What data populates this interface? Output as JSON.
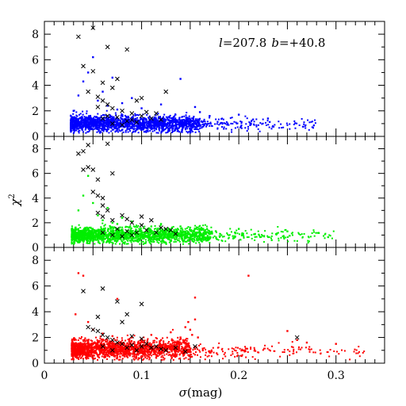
{
  "chart_data": {
    "type": "scatter",
    "annotation": {
      "l_sym": "l",
      "l_val": "=207.8",
      "b_sym": "b",
      "b_val": "=+40.8"
    },
    "xlabel": {
      "sym": "σ",
      "rest": "(mag)"
    },
    "ylabel": {
      "sym": "χ",
      "sup": "2"
    },
    "xlim": [
      0,
      0.35
    ],
    "ylim": [
      0,
      9
    ],
    "x_ticks": [
      0,
      0.1,
      0.2,
      0.3
    ],
    "x_tick_labels": [
      "0",
      "0.1",
      "0.2",
      "0.3"
    ],
    "y_ticks": [
      0,
      2,
      4,
      6,
      8
    ],
    "y_tick_labels": [
      "0",
      "2",
      "4",
      "6",
      "8"
    ],
    "grid": false,
    "panels": [
      {
        "name": "blue",
        "color": "#0000ff",
        "dots_core": {
          "x_range": [
            0.027,
            0.16
          ],
          "y_center": 1.0,
          "y_spread": 0.3
        },
        "dots_tail": {
          "x_range": [
            0.16,
            0.28
          ],
          "y_center": 0.95,
          "y_spread": 0.25
        },
        "dots_outliers": [
          [
            0.03,
            2.0
          ],
          [
            0.035,
            3.2
          ],
          [
            0.04,
            4.3
          ],
          [
            0.045,
            5.0
          ],
          [
            0.05,
            6.2
          ],
          [
            0.055,
            2.8
          ],
          [
            0.06,
            3.5
          ],
          [
            0.065,
            2.4
          ],
          [
            0.07,
            4.6
          ],
          [
            0.075,
            2.1
          ],
          [
            0.08,
            2.6
          ],
          [
            0.09,
            3.0
          ],
          [
            0.1,
            2.2
          ],
          [
            0.12,
            2.5
          ],
          [
            0.14,
            4.5
          ],
          [
            0.155,
            2.3
          ],
          [
            0.16,
            1.9
          ],
          [
            0.17,
            1.6
          ],
          [
            0.2,
            1.7
          ],
          [
            0.23,
            1.4
          ]
        ],
        "crosses": [
          [
            0.035,
            7.8
          ],
          [
            0.05,
            8.5
          ],
          [
            0.065,
            7.0
          ],
          [
            0.085,
            6.8
          ],
          [
            0.04,
            5.5
          ],
          [
            0.05,
            5.1
          ],
          [
            0.06,
            4.2
          ],
          [
            0.07,
            3.8
          ],
          [
            0.075,
            4.5
          ],
          [
            0.045,
            3.5
          ],
          [
            0.055,
            3.1
          ],
          [
            0.06,
            2.8
          ],
          [
            0.065,
            2.5
          ],
          [
            0.07,
            2.2
          ],
          [
            0.08,
            2.0
          ],
          [
            0.09,
            1.8
          ],
          [
            0.1,
            1.6
          ],
          [
            0.11,
            1.4
          ],
          [
            0.12,
            1.3
          ],
          [
            0.075,
            1.5
          ],
          [
            0.085,
            1.2
          ],
          [
            0.095,
            1.1
          ],
          [
            0.065,
            1.6
          ],
          [
            0.055,
            2.3
          ],
          [
            0.105,
            1.9
          ],
          [
            0.115,
            1.8
          ],
          [
            0.125,
            3.5
          ],
          [
            0.095,
            2.8
          ],
          [
            0.1,
            3.0
          ],
          [
            0.07,
            1.0
          ],
          [
            0.08,
            0.9
          ],
          [
            0.06,
            1.4
          ],
          [
            0.09,
            1.3
          ]
        ]
      },
      {
        "name": "green",
        "color": "#00ee00",
        "dots_core": {
          "x_range": [
            0.028,
            0.17
          ],
          "y_center": 1.0,
          "y_spread": 0.3
        },
        "dots_tail": {
          "x_range": [
            0.17,
            0.3
          ],
          "y_center": 0.95,
          "y_spread": 0.25
        },
        "dots_outliers": [
          [
            0.035,
            3.0
          ],
          [
            0.04,
            4.2
          ],
          [
            0.045,
            5.8
          ],
          [
            0.05,
            3.6
          ],
          [
            0.055,
            2.6
          ],
          [
            0.06,
            2.2
          ],
          [
            0.065,
            3.2
          ],
          [
            0.07,
            2.0
          ],
          [
            0.075,
            1.9
          ],
          [
            0.08,
            2.4
          ],
          [
            0.09,
            2.1
          ],
          [
            0.1,
            1.8
          ],
          [
            0.11,
            1.7
          ],
          [
            0.12,
            1.9
          ],
          [
            0.14,
            1.7
          ],
          [
            0.15,
            1.6
          ],
          [
            0.16,
            1.5
          ],
          [
            0.2,
            1.5
          ],
          [
            0.25,
            1.3
          ]
        ],
        "crosses": [
          [
            0.035,
            7.6
          ],
          [
            0.045,
            8.3
          ],
          [
            0.04,
            7.8
          ],
          [
            0.065,
            8.4
          ],
          [
            0.04,
            6.3
          ],
          [
            0.045,
            6.5
          ],
          [
            0.05,
            6.3
          ],
          [
            0.055,
            5.5
          ],
          [
            0.07,
            6.0
          ],
          [
            0.05,
            4.5
          ],
          [
            0.055,
            4.2
          ],
          [
            0.06,
            4.0
          ],
          [
            0.06,
            3.4
          ],
          [
            0.065,
            3.0
          ],
          [
            0.055,
            2.8
          ],
          [
            0.06,
            2.5
          ],
          [
            0.07,
            2.2
          ],
          [
            0.08,
            2.6
          ],
          [
            0.085,
            2.3
          ],
          [
            0.09,
            2.0
          ],
          [
            0.1,
            1.8
          ],
          [
            0.11,
            2.2
          ],
          [
            0.12,
            1.6
          ],
          [
            0.13,
            1.4
          ],
          [
            0.075,
            1.5
          ],
          [
            0.085,
            1.3
          ],
          [
            0.095,
            1.2
          ],
          [
            0.105,
            1.4
          ],
          [
            0.115,
            1.2
          ],
          [
            0.125,
            1.5
          ],
          [
            0.07,
            1.0
          ],
          [
            0.08,
            0.9
          ],
          [
            0.06,
            1.2
          ],
          [
            0.09,
            1.0
          ],
          [
            0.1,
            2.5
          ],
          [
            0.135,
            1.1
          ]
        ]
      },
      {
        "name": "red",
        "color": "#ff0000",
        "dots_core": {
          "x_range": [
            0.028,
            0.15
          ],
          "y_center": 1.1,
          "y_spread": 0.35
        },
        "dots_tail": {
          "x_range": [
            0.15,
            0.33
          ],
          "y_center": 0.95,
          "y_spread": 0.25
        },
        "dots_outliers": [
          [
            0.032,
            3.8
          ],
          [
            0.035,
            7.0
          ],
          [
            0.04,
            6.8
          ],
          [
            0.045,
            3.2
          ],
          [
            0.05,
            2.6
          ],
          [
            0.06,
            2.3
          ],
          [
            0.07,
            2.1
          ],
          [
            0.075,
            5.0
          ],
          [
            0.09,
            2.0
          ],
          [
            0.1,
            1.9
          ],
          [
            0.11,
            2.2
          ],
          [
            0.12,
            1.8
          ],
          [
            0.13,
            2.4
          ],
          [
            0.14,
            2.0
          ],
          [
            0.145,
            2.8
          ],
          [
            0.148,
            3.2
          ],
          [
            0.15,
            2.6
          ],
          [
            0.152,
            2.2
          ],
          [
            0.155,
            3.4
          ],
          [
            0.158,
            2.0
          ],
          [
            0.155,
            5.1
          ],
          [
            0.21,
            6.8
          ],
          [
            0.25,
            2.5
          ],
          [
            0.26,
            1.8
          ],
          [
            0.27,
            1.6
          ],
          [
            0.3,
            1.5
          ]
        ],
        "crosses": [
          [
            0.04,
            5.6
          ],
          [
            0.06,
            5.8
          ],
          [
            0.075,
            4.8
          ],
          [
            0.1,
            4.6
          ],
          [
            0.055,
            3.6
          ],
          [
            0.08,
            3.2
          ],
          [
            0.085,
            3.8
          ],
          [
            0.045,
            2.8
          ],
          [
            0.05,
            2.6
          ],
          [
            0.055,
            2.5
          ],
          [
            0.06,
            2.2
          ],
          [
            0.065,
            2.0
          ],
          [
            0.07,
            1.8
          ],
          [
            0.075,
            1.6
          ],
          [
            0.08,
            1.5
          ],
          [
            0.09,
            1.4
          ],
          [
            0.1,
            1.3
          ],
          [
            0.11,
            1.2
          ],
          [
            0.12,
            1.1
          ],
          [
            0.085,
            1.2
          ],
          [
            0.095,
            1.0
          ],
          [
            0.105,
            1.5
          ],
          [
            0.115,
            1.3
          ],
          [
            0.125,
            1.0
          ],
          [
            0.135,
            1.2
          ],
          [
            0.06,
            1.3
          ],
          [
            0.07,
            1.0
          ],
          [
            0.09,
            2.1
          ],
          [
            0.1,
            1.9
          ],
          [
            0.145,
            0.9
          ],
          [
            0.155,
            1.3
          ],
          [
            0.26,
            2.0
          ]
        ]
      }
    ]
  }
}
